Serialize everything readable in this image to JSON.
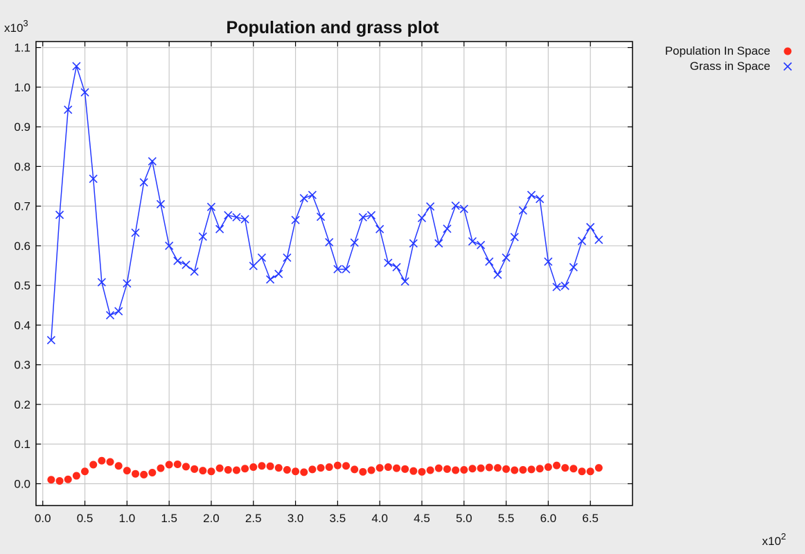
{
  "colors": {
    "population": "#ff2a1a",
    "grass": "#2438ff",
    "grid": "#c8c8c8",
    "axes": "#000000",
    "plot_bg": "#ffffff",
    "window_bg": "#ebebeb"
  },
  "chart_data": {
    "type": "line",
    "title": "Population and grass plot",
    "xlabel": "",
    "ylabel": "",
    "x_multiplier_label": "x10",
    "x_multiplier_exp": "2",
    "y_multiplier_label": "x10",
    "y_multiplier_exp": "3",
    "xlim": [
      -0.08,
      7.0
    ],
    "ylim": [
      -0.055,
      1.115
    ],
    "x_ticks": [
      0.0,
      0.5,
      1.0,
      1.5,
      2.0,
      2.5,
      3.0,
      3.5,
      4.0,
      4.5,
      5.0,
      5.5,
      6.0,
      6.5
    ],
    "x_tick_labels": [
      "0.0",
      "0.5",
      "1.0",
      "1.5",
      "2.0",
      "2.5",
      "3.0",
      "3.5",
      "4.0",
      "4.5",
      "5.0",
      "5.5",
      "6.0",
      "6.5"
    ],
    "y_ticks": [
      0.0,
      0.1,
      0.2,
      0.3,
      0.4,
      0.5,
      0.6,
      0.7,
      0.8,
      0.9,
      1.0,
      1.1
    ],
    "y_tick_labels": [
      "0.0",
      "0.1",
      "0.2",
      "0.3",
      "0.4",
      "0.5",
      "0.6",
      "0.7",
      "0.8",
      "0.9",
      "1.0",
      "1.1"
    ],
    "grid": true,
    "legend_position": "outside-top-right",
    "x": [
      0.1,
      0.2,
      0.3,
      0.4,
      0.5,
      0.6,
      0.7,
      0.8,
      0.9,
      1.0,
      1.1,
      1.2,
      1.3,
      1.4,
      1.5,
      1.6,
      1.7,
      1.8,
      1.9,
      2.0,
      2.1,
      2.2,
      2.3,
      2.4,
      2.5,
      2.6,
      2.7,
      2.8,
      2.9,
      3.0,
      3.1,
      3.2,
      3.3,
      3.4,
      3.5,
      3.6,
      3.7,
      3.8,
      3.9,
      4.0,
      4.1,
      4.2,
      4.3,
      4.4,
      4.5,
      4.6,
      4.7,
      4.8,
      4.9,
      5.0,
      5.1,
      5.2,
      5.3,
      5.4,
      5.5,
      5.6,
      5.7,
      5.8,
      5.9,
      6.0,
      6.1,
      6.2,
      6.3,
      6.4,
      6.5,
      6.6
    ],
    "series": [
      {
        "name": "Population In Space",
        "marker": "circle",
        "line": false,
        "values": [
          0.01,
          0.007,
          0.011,
          0.02,
          0.031,
          0.048,
          0.058,
          0.055,
          0.045,
          0.033,
          0.025,
          0.023,
          0.028,
          0.039,
          0.048,
          0.049,
          0.043,
          0.037,
          0.033,
          0.031,
          0.039,
          0.035,
          0.034,
          0.038,
          0.042,
          0.045,
          0.044,
          0.04,
          0.035,
          0.031,
          0.029,
          0.036,
          0.04,
          0.042,
          0.046,
          0.045,
          0.036,
          0.03,
          0.034,
          0.04,
          0.042,
          0.039,
          0.037,
          0.032,
          0.03,
          0.034,
          0.039,
          0.037,
          0.034,
          0.035,
          0.038,
          0.039,
          0.041,
          0.04,
          0.037,
          0.034,
          0.035,
          0.036,
          0.038,
          0.042,
          0.046,
          0.04,
          0.038,
          0.031,
          0.031,
          0.04
        ]
      },
      {
        "name": "Grass in Space",
        "marker": "x",
        "line": true,
        "values": [
          0.362,
          0.678,
          0.943,
          1.053,
          0.987,
          0.769,
          0.508,
          0.425,
          0.435,
          0.505,
          0.633,
          0.76,
          0.813,
          0.705,
          0.6,
          0.562,
          0.552,
          0.535,
          0.623,
          0.698,
          0.642,
          0.677,
          0.672,
          0.667,
          0.549,
          0.57,
          0.515,
          0.529,
          0.57,
          0.665,
          0.72,
          0.728,
          0.673,
          0.609,
          0.541,
          0.541,
          0.608,
          0.672,
          0.677,
          0.642,
          0.557,
          0.546,
          0.51,
          0.606,
          0.67,
          0.699,
          0.606,
          0.643,
          0.701,
          0.693,
          0.611,
          0.602,
          0.56,
          0.527,
          0.57,
          0.622,
          0.689,
          0.728,
          0.718,
          0.56,
          0.496,
          0.499,
          0.546,
          0.612,
          0.647,
          0.615
        ]
      }
    ]
  }
}
